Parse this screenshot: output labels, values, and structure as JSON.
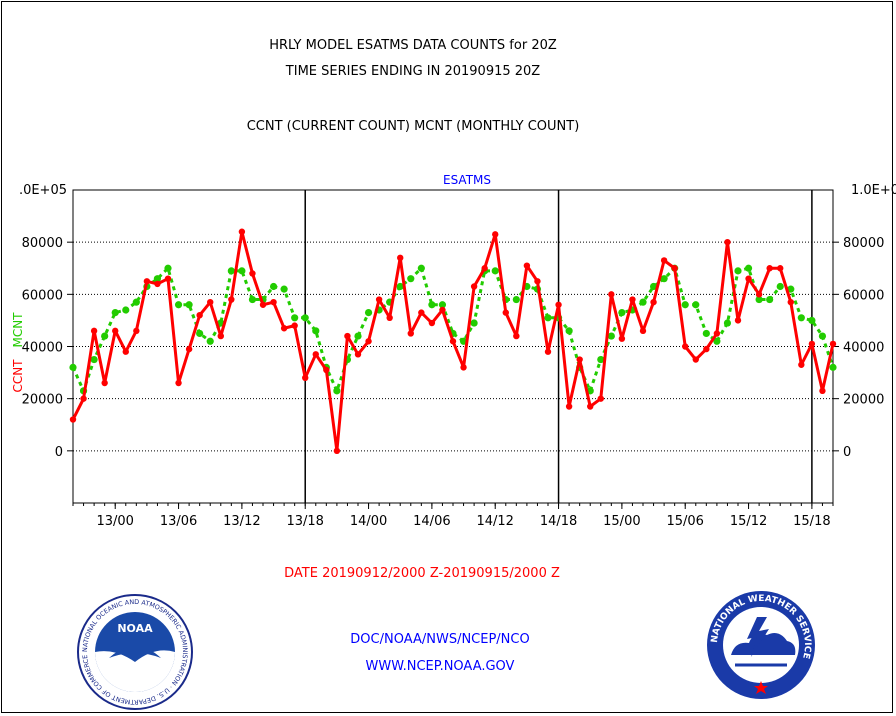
{
  "header": {
    "title1": "HRLY MODEL ESATMS DATA COUNTS for 20Z",
    "title2": "TIME SERIES ENDING IN 20190915 20Z",
    "subtitle": "CCNT (CURRENT COUNT) MCNT (MONTHLY COUNT)"
  },
  "chart_data": {
    "type": "line",
    "title": "ESATMS",
    "ylabel_left": "CCNT",
    "ylabel_right": "MCNT",
    "xlabel": "DATE 20190912/2000 Z-20190915/2000 Z",
    "ylim": [
      -20000,
      100000
    ],
    "y_ticks": [
      0,
      20000,
      40000,
      60000,
      80000
    ],
    "y_tick_labels_left": [
      "0",
      "20000",
      "40000",
      "60000",
      "80000"
    ],
    "y_tick_labels_right": [
      "0",
      "20000",
      "40000",
      "60000",
      "80000"
    ],
    "y_top_label_left": ".0E+05",
    "y_top_label_right": "1.0E+0",
    "x_tick_labels": [
      "13/00",
      "13/06",
      "13/12",
      "13/18",
      "14/00",
      "14/06",
      "14/12",
      "14/18",
      "15/00",
      "15/06",
      "15/12",
      "15/18"
    ],
    "x_tick_hours": [
      4,
      10,
      16,
      22,
      28,
      34,
      40,
      46,
      52,
      58,
      64,
      70
    ],
    "day_boundary_hours": [
      22,
      46,
      70
    ],
    "grid": "horizontal dotted",
    "x_hours": [
      0,
      1,
      2,
      3,
      4,
      5,
      6,
      7,
      8,
      9,
      10,
      11,
      12,
      13,
      14,
      15,
      16,
      17,
      18,
      19,
      20,
      21,
      22,
      23,
      24,
      25,
      26,
      27,
      28,
      29,
      30,
      31,
      32,
      33,
      34,
      35,
      36,
      37,
      38,
      39,
      40,
      41,
      42,
      43,
      44,
      45,
      46,
      47,
      48,
      49,
      50,
      51,
      52,
      53,
      54,
      55,
      56,
      57,
      58,
      59,
      60,
      61,
      62,
      63,
      64,
      65,
      66,
      67,
      68,
      69,
      70,
      71,
      72
    ],
    "series": [
      {
        "name": "CCNT",
        "color": "#ff0000",
        "values": [
          12000,
          20000,
          46000,
          26000,
          46000,
          38000,
          46000,
          65000,
          64000,
          66000,
          26000,
          39000,
          52000,
          57000,
          44000,
          58000,
          84000,
          68000,
          56000,
          57000,
          47000,
          48000,
          28000,
          37000,
          31000,
          0,
          44000,
          37000,
          42000,
          58000,
          51000,
          74000,
          45000,
          53000,
          49000,
          54000,
          42000,
          32000,
          63000,
          70000,
          83000,
          53000,
          44000,
          71000,
          65000,
          38000,
          56000,
          17000,
          35000,
          17000,
          20000,
          60000,
          43000,
          58000,
          46000,
          57000,
          73000,
          70000,
          40000,
          35000,
          39000,
          45000,
          80000,
          50000,
          66000,
          60000,
          70000,
          70000,
          57000,
          33000,
          41000,
          23000,
          41000
        ]
      },
      {
        "name": "MCNT",
        "color": "#22cc00",
        "values": [
          32000,
          23000,
          35000,
          44000,
          53000,
          54000,
          57000,
          63000,
          66000,
          70000,
          56000,
          56000,
          45000,
          42000,
          49000,
          69000,
          69000,
          58000,
          58000,
          63000,
          62000,
          51000,
          51000,
          46000,
          32000,
          23000,
          35000,
          44000,
          53000,
          54000,
          57000,
          63000,
          66000,
          70000,
          56000,
          56000,
          45000,
          42000,
          49000,
          69000,
          69000,
          58000,
          58000,
          63000,
          62000,
          51000,
          51000,
          46000,
          32000,
          23000,
          35000,
          44000,
          53000,
          54000,
          57000,
          63000,
          66000,
          70000,
          56000,
          56000,
          45000,
          42000,
          49000,
          69000,
          70000,
          58000,
          58000,
          63000,
          62000,
          51000,
          50000,
          44000,
          32000
        ]
      }
    ]
  },
  "footer": {
    "line1": "DOC/NOAA/NWS/NCEP/NCO",
    "line2": "WWW.NCEP.NOAA.GOV"
  },
  "logos": {
    "noaa_text": "NOAA",
    "noaa_ring": "NATIONAL OCEANIC AND ATMOSPHERIC ADMINISTRATION · U.S. DEPARTMENT OF COMMERCE",
    "nws_ring": "NATIONAL WEATHER SERVICE"
  }
}
